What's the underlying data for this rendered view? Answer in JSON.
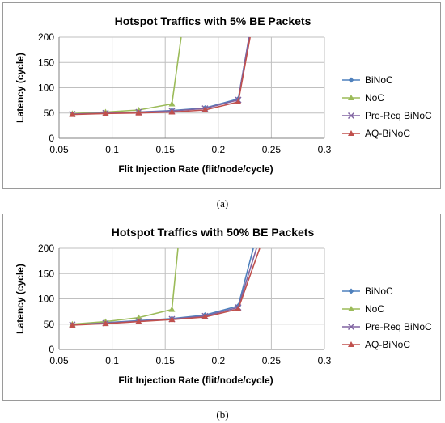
{
  "colors": {
    "grid": "#bfbfbf",
    "axis": "#000000",
    "text": "#000000"
  },
  "panels": [
    {
      "caption": "(a)"
    },
    {
      "caption": "(b)"
    }
  ],
  "chart_data": [
    {
      "type": "line",
      "title": "Hotspot Traffics with 5% BE Packets",
      "xlabel": "Flit Injection Rate (flit/node/cycle)",
      "ylabel": "Latency (cycle)",
      "xlim": [
        0.05,
        0.3
      ],
      "ylim": [
        0,
        200
      ],
      "xticks": [
        "0.05",
        "0.1",
        "0.15",
        "0.2",
        "0.25",
        "0.3"
      ],
      "yticks": [
        "0",
        "50",
        "100",
        "150",
        "200"
      ],
      "grid": true,
      "legend": "right",
      "series": [
        {
          "name": "BiNoC",
          "color": "#4f81bd",
          "marker": "diamond",
          "x": [
            0.0625,
            0.0938,
            0.125,
            0.1563,
            0.1875,
            0.2188,
            0.229
          ],
          "y": [
            48,
            50,
            52,
            55,
            60,
            78,
            200
          ]
        },
        {
          "name": "NoC",
          "color": "#9bbb59",
          "marker": "triangle",
          "x": [
            0.0625,
            0.0938,
            0.125,
            0.1563,
            0.165
          ],
          "y": [
            49,
            52,
            56,
            68,
            200
          ]
        },
        {
          "name": "Pre-Req BiNoC",
          "color": "#8064a2",
          "marker": "x",
          "x": [
            0.0625,
            0.0938,
            0.125,
            0.1563,
            0.1875,
            0.2188,
            0.229
          ],
          "y": [
            48,
            50,
            52,
            54,
            59,
            76,
            200
          ]
        },
        {
          "name": "AQ-BiNoC",
          "color": "#c0504d",
          "marker": "triangle",
          "x": [
            0.0625,
            0.0938,
            0.125,
            0.1563,
            0.1875,
            0.2188,
            0.23
          ],
          "y": [
            47,
            49,
            50,
            52,
            56,
            72,
            200
          ]
        }
      ]
    },
    {
      "type": "line",
      "title": "Hotspot Traffics with 50% BE Packets",
      "xlabel": "Flit Injection Rate (flit/node/cycle)",
      "ylabel": "Latency (cycle)",
      "xlim": [
        0.05,
        0.3
      ],
      "ylim": [
        0,
        200
      ],
      "xticks": [
        "0.05",
        "0.1",
        "0.15",
        "0.2",
        "0.25",
        "0.3"
      ],
      "yticks": [
        "0",
        "50",
        "100",
        "150",
        "200"
      ],
      "grid": true,
      "legend": "right",
      "series": [
        {
          "name": "BiNoC",
          "color": "#4f81bd",
          "marker": "diamond",
          "x": [
            0.0625,
            0.0938,
            0.125,
            0.1563,
            0.1875,
            0.2188,
            0.233
          ],
          "y": [
            49,
            53,
            57,
            61,
            68,
            86,
            200
          ]
        },
        {
          "name": "NoC",
          "color": "#9bbb59",
          "marker": "triangle",
          "x": [
            0.0625,
            0.0938,
            0.125,
            0.1563,
            0.162
          ],
          "y": [
            50,
            55,
            63,
            79,
            200
          ]
        },
        {
          "name": "Pre-Req BiNoC",
          "color": "#8064a2",
          "marker": "x",
          "x": [
            0.0625,
            0.0938,
            0.125,
            0.1563,
            0.1875,
            0.2188,
            0.236
          ],
          "y": [
            49,
            52,
            56,
            60,
            66,
            83,
            200
          ]
        },
        {
          "name": "AQ-BiNoC",
          "color": "#c0504d",
          "marker": "triangle",
          "x": [
            0.0625,
            0.0938,
            0.125,
            0.1563,
            0.1875,
            0.2188,
            0.239
          ],
          "y": [
            48,
            51,
            55,
            59,
            64,
            80,
            200
          ]
        }
      ]
    }
  ]
}
